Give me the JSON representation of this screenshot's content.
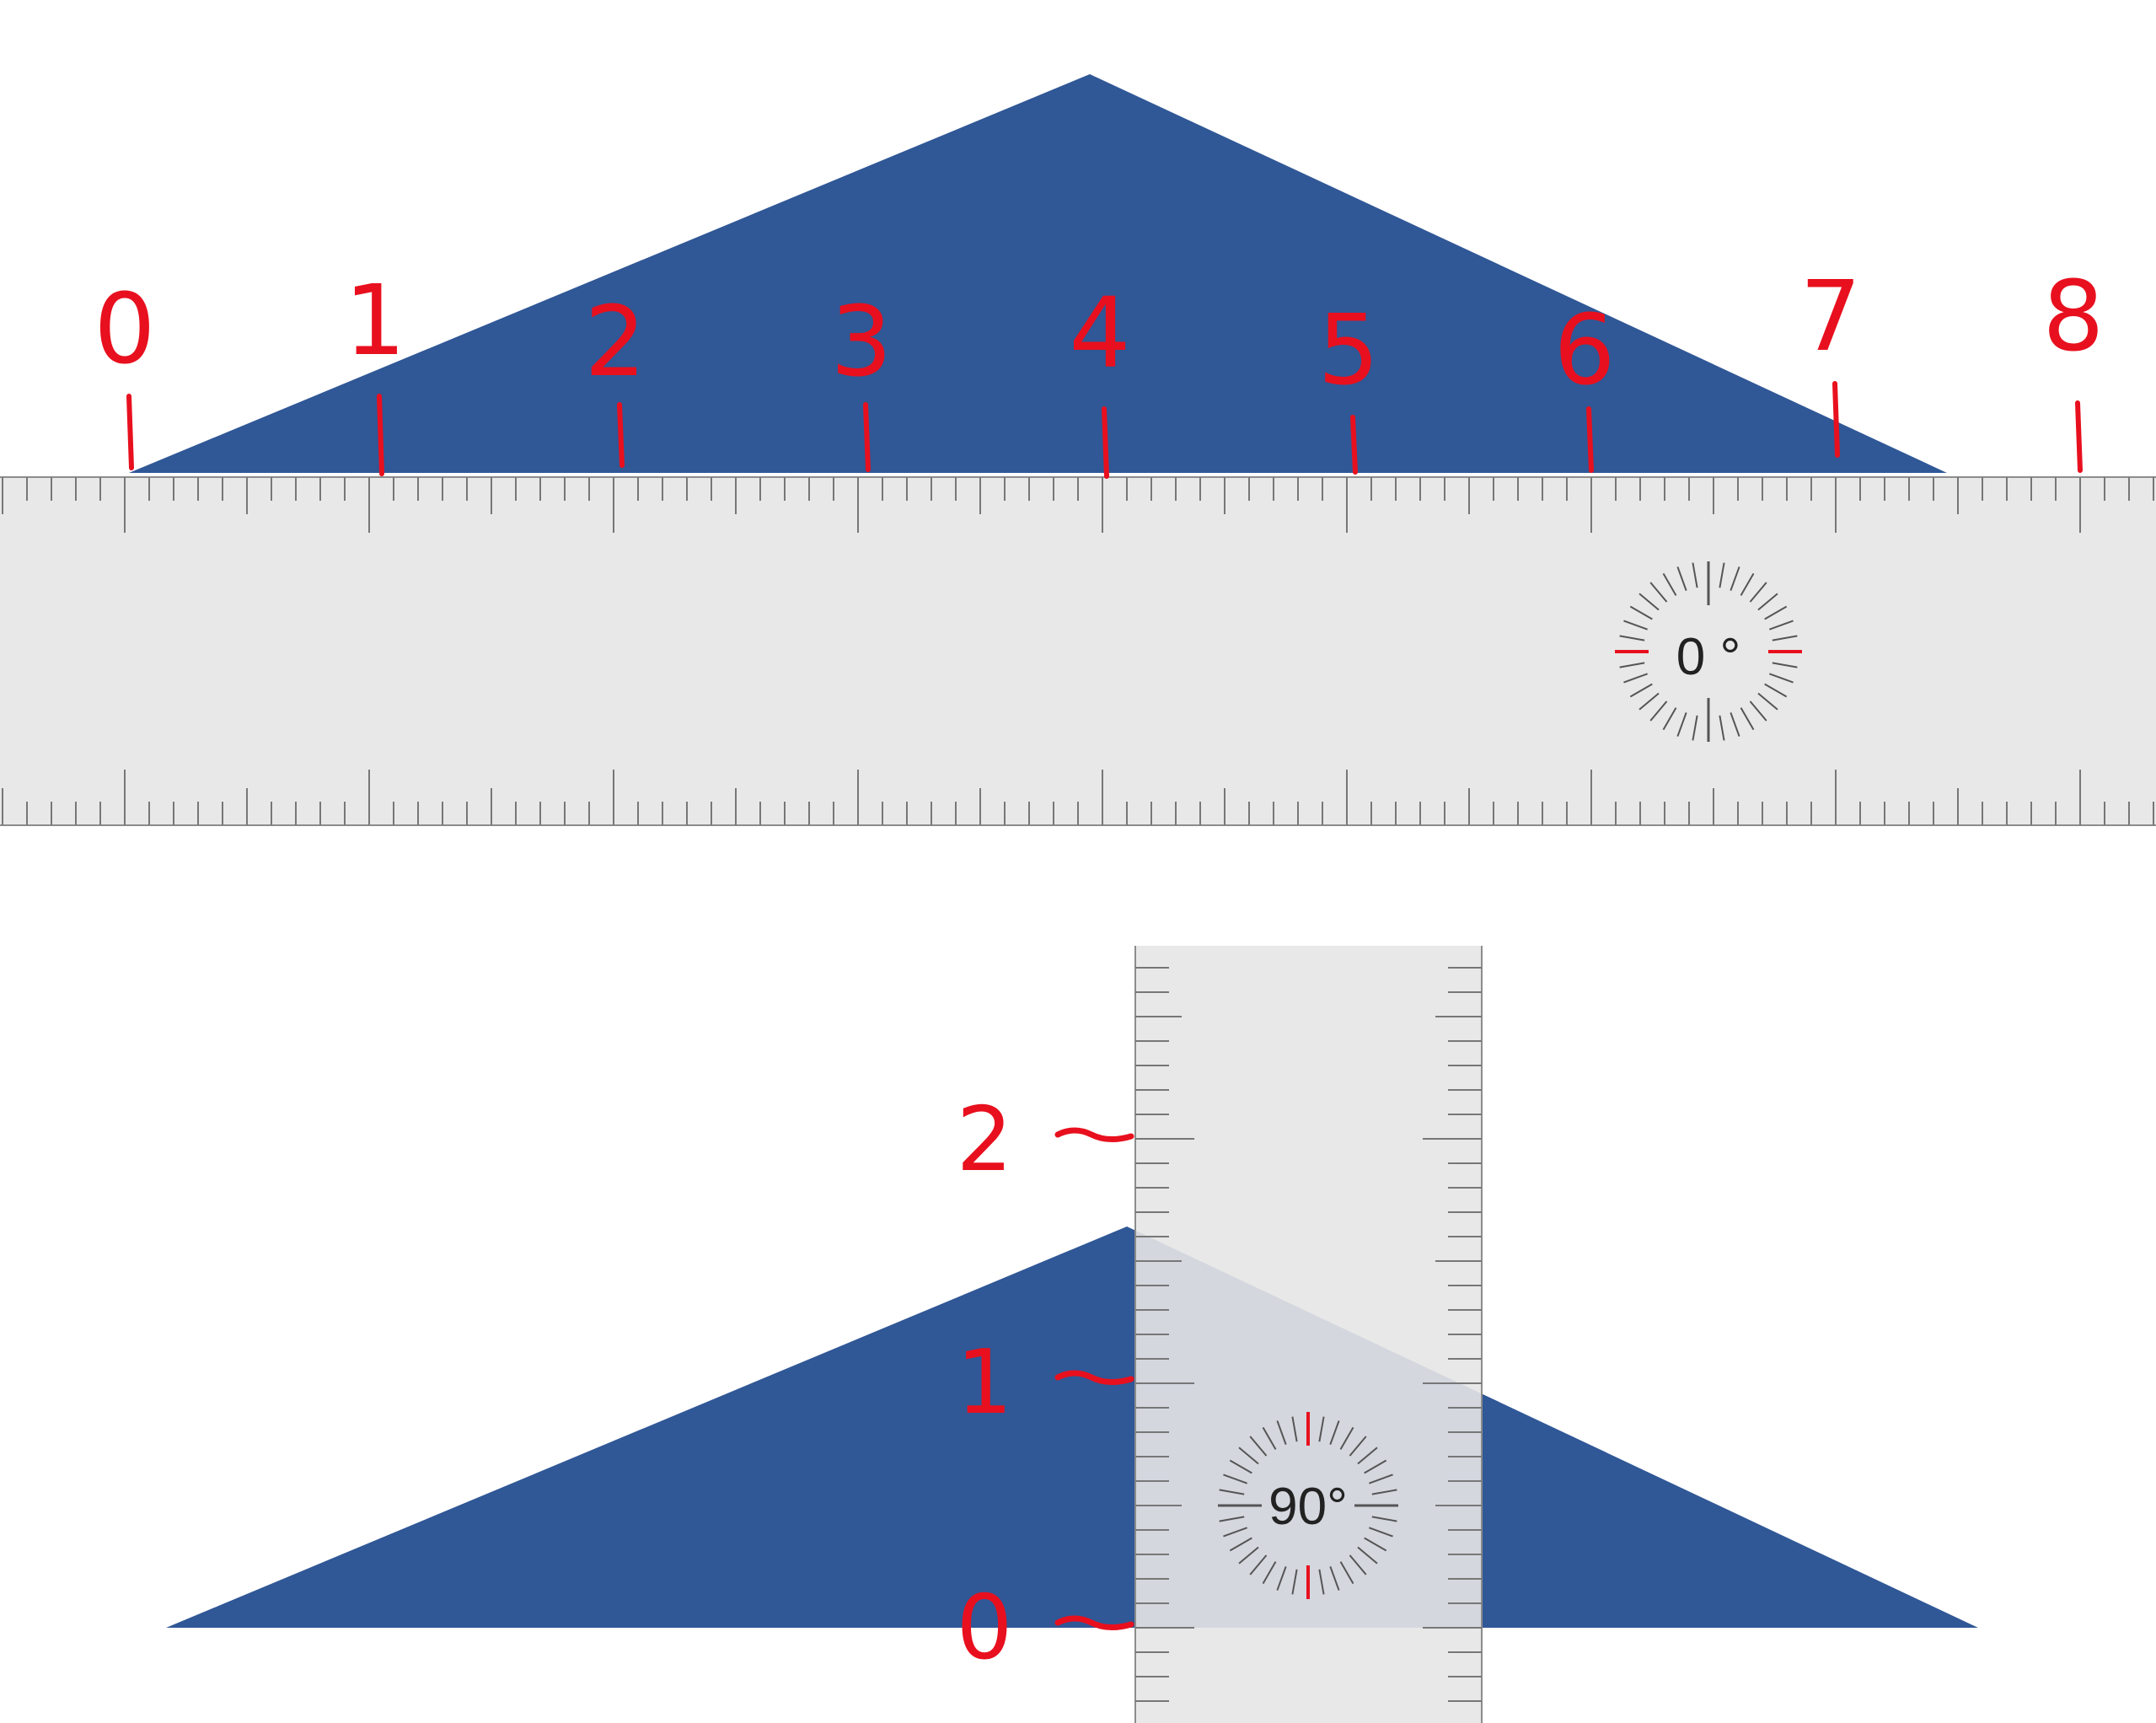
{
  "colors": {
    "triangle": "#305796",
    "ruler_fill": "#e8e8e8",
    "ruler_tick": "#777777",
    "ruler_border": "#8c8c8c",
    "annotation": "#e8101e",
    "dial_tick": "#555555",
    "dial_text": "#222222",
    "overlap": "#d4d7de"
  },
  "horizontal_ruler": {
    "angle_readout": "0 °",
    "annotation_labels": [
      "0",
      "1",
      "2",
      "3",
      "4",
      "5",
      "6",
      "7",
      "8"
    ]
  },
  "vertical_ruler": {
    "angle_readout": "90°",
    "annotation_labels": [
      "0",
      "1",
      "2"
    ]
  },
  "icons": [
    "ruler-icon",
    "protractor-dial-icon"
  ]
}
